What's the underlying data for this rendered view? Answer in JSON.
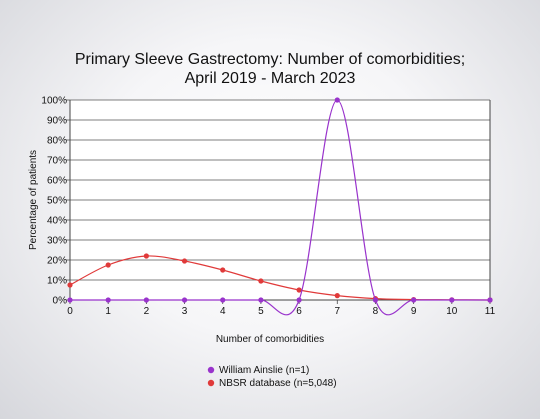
{
  "chart_data": {
    "type": "line",
    "title_lines": [
      "Primary Sleeve Gastrectomy: Number of comorbidities;",
      "April 2019 - March 2023"
    ],
    "xlabel": "Number of comorbidities",
    "ylabel": "Percentage of patients",
    "x": [
      0,
      1,
      2,
      3,
      4,
      5,
      6,
      7,
      8,
      9,
      10,
      11
    ],
    "x_tick_labels": [
      "0",
      "1",
      "2",
      "3",
      "4",
      "5",
      "6",
      "7",
      "8",
      "9",
      "10",
      "11"
    ],
    "xlim": [
      0,
      11
    ],
    "ylim": [
      0,
      100
    ],
    "y_tick_values": [
      0,
      10,
      20,
      30,
      40,
      50,
      60,
      70,
      80,
      90,
      100
    ],
    "y_tick_labels": [
      "0%",
      "10%",
      "20%",
      "30%",
      "40%",
      "50%",
      "60%",
      "70%",
      "80%",
      "90%",
      "100%"
    ],
    "grid": "horizontal",
    "legend_position": "bottom",
    "series": [
      {
        "name": "William Ainslie (n=1)",
        "color": "#9933cc",
        "values": [
          0,
          0,
          0,
          0,
          0,
          0,
          0,
          100,
          0,
          0,
          0,
          0
        ]
      },
      {
        "name": "NBSR database (n=5,048)",
        "color": "#e03a3a",
        "values": [
          7.5,
          17.5,
          22,
          19.5,
          15,
          9.5,
          5,
          2.2,
          0.7,
          0.2,
          0.1,
          0
        ]
      }
    ]
  }
}
